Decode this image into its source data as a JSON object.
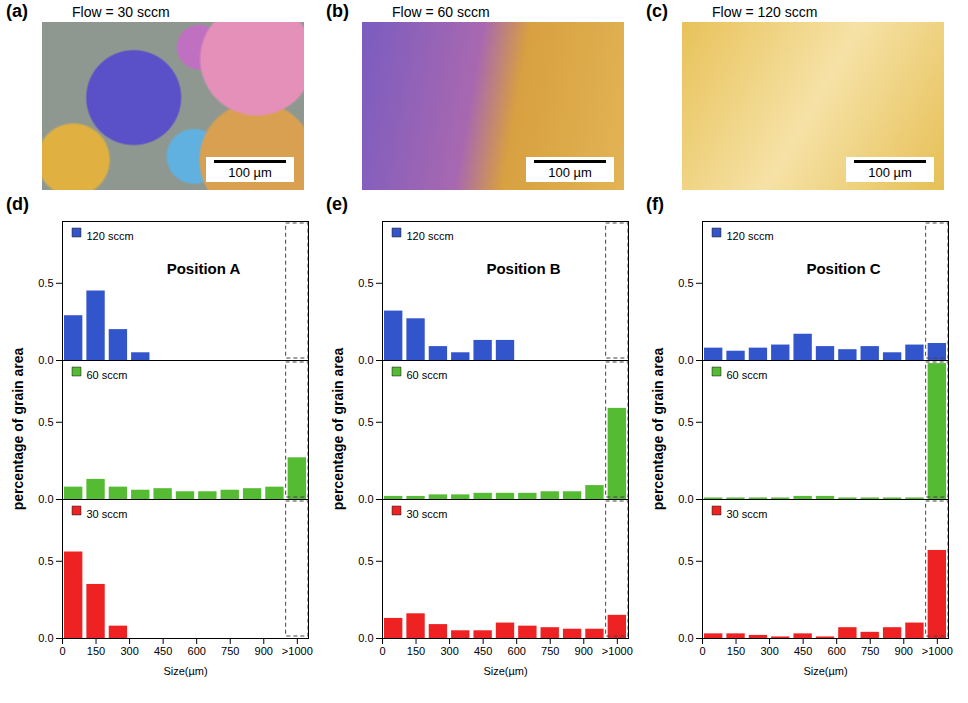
{
  "images": [
    {
      "label": "(a)",
      "title": "Flow = 30 sccm",
      "scale_bar": "100 µm"
    },
    {
      "label": "(b)",
      "title": "Flow = 60 sccm",
      "scale_bar": "100 µm"
    },
    {
      "label": "(c)",
      "title": "Flow = 120 sccm",
      "scale_bar": "100 µm"
    }
  ],
  "chart_data": [
    {
      "type": "bar",
      "panel_label": "(d)",
      "title": "Position A",
      "x_label": "Size(µm)",
      "y_label": "percentage of grain area",
      "bins": [
        0,
        100,
        200,
        300,
        400,
        500,
        600,
        700,
        800,
        900,
        1000,
        1100
      ],
      "xlim": [
        0,
        1100
      ],
      "xticks": [
        0,
        150,
        300,
        450,
        600,
        750,
        900,
        {
          "value": 1050,
          "label": ">1000"
        }
      ],
      "ylim": [
        0,
        0.9
      ],
      "yticks": [
        {
          "value": 0,
          "label": "0.0"
        },
        0.5
      ],
      "series": [
        {
          "name": "120 sccm",
          "color": "#3355cc",
          "values": [
            0.29,
            0.45,
            0.2,
            0.05,
            0,
            0,
            0,
            0,
            0,
            0,
            0
          ]
        },
        {
          "name": "60 sccm",
          "color": "#55bb33",
          "values": [
            0.08,
            0.13,
            0.08,
            0.06,
            0.07,
            0.05,
            0.05,
            0.06,
            0.07,
            0.08,
            0.27
          ]
        },
        {
          "name": "30 sccm",
          "color": "#ee2222",
          "values": [
            0.56,
            0.35,
            0.08,
            0,
            0,
            0,
            0,
            0,
            0,
            0,
            0
          ]
        }
      ]
    },
    {
      "type": "bar",
      "panel_label": "(e)",
      "title": "Position B",
      "x_label": "Size(µm)",
      "y_label": "percentage of grain area",
      "bins": [
        0,
        100,
        200,
        300,
        400,
        500,
        600,
        700,
        800,
        900,
        1000,
        1100
      ],
      "xlim": [
        0,
        1100
      ],
      "xticks": [
        0,
        150,
        300,
        450,
        600,
        750,
        900,
        {
          "value": 1050,
          "label": ">1000"
        }
      ],
      "ylim": [
        0,
        0.9
      ],
      "yticks": [
        {
          "value": 0,
          "label": "0.0"
        },
        0.5
      ],
      "series": [
        {
          "name": "120 sccm",
          "color": "#3355cc",
          "values": [
            0.32,
            0.27,
            0.09,
            0.05,
            0.13,
            0.13,
            0,
            0,
            0,
            0,
            0
          ]
        },
        {
          "name": "60 sccm",
          "color": "#55bb33",
          "values": [
            0.02,
            0.02,
            0.03,
            0.03,
            0.04,
            0.04,
            0.04,
            0.05,
            0.05,
            0.09,
            0.59
          ]
        },
        {
          "name": "30 sccm",
          "color": "#ee2222",
          "values": [
            0.13,
            0.16,
            0.09,
            0.05,
            0.05,
            0.1,
            0.08,
            0.07,
            0.06,
            0.06,
            0.15
          ]
        }
      ]
    },
    {
      "type": "bar",
      "panel_label": "(f)",
      "title": "Position C",
      "x_label": "Size(µm)",
      "y_label": "percentage of grain area",
      "bins": [
        0,
        100,
        200,
        300,
        400,
        500,
        600,
        700,
        800,
        900,
        1000,
        1100
      ],
      "xlim": [
        0,
        1100
      ],
      "xticks": [
        0,
        150,
        300,
        450,
        600,
        750,
        900,
        {
          "value": 1050,
          "label": ">1000"
        }
      ],
      "ylim": [
        0,
        0.9
      ],
      "yticks": [
        {
          "value": 0,
          "label": "0.0"
        },
        0.5
      ],
      "series": [
        {
          "name": "120 sccm",
          "color": "#3355cc",
          "values": [
            0.08,
            0.06,
            0.08,
            0.1,
            0.17,
            0.09,
            0.07,
            0.09,
            0.05,
            0.1,
            0.11
          ]
        },
        {
          "name": "60 sccm",
          "color": "#55bb33",
          "values": [
            0.01,
            0.01,
            0.01,
            0.01,
            0.02,
            0.02,
            0.01,
            0.01,
            0.01,
            0.01,
            0.88
          ]
        },
        {
          "name": "30 sccm",
          "color": "#ee2222",
          "values": [
            0.03,
            0.03,
            0.02,
            0.01,
            0.03,
            0.01,
            0.07,
            0.04,
            0.07,
            0.1,
            0.57
          ]
        }
      ]
    }
  ]
}
